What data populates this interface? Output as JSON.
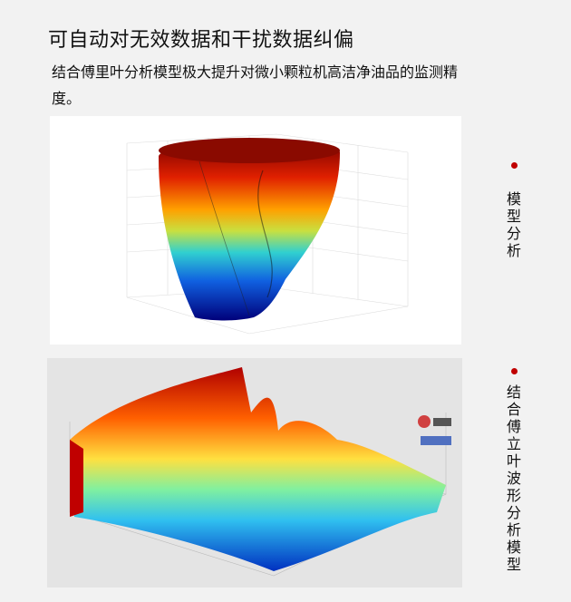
{
  "header": {
    "title": "可自动对无效数据和干扰数据纠偏",
    "description": "结合傅里叶分析模型极大提升对微小颗粒机高洁净油品的监测精度。"
  },
  "figures": [
    {
      "kind": "3d-surface-plot",
      "colormap": "jet"
    },
    {
      "kind": "3d-waveform-surface-plot",
      "colormap": "jet"
    }
  ],
  "side_labels": [
    {
      "label": "模型分析",
      "marker_color": "#c00000"
    },
    {
      "label": "结合傅立叶波形分析模型",
      "marker_color": "#c00000"
    }
  ]
}
